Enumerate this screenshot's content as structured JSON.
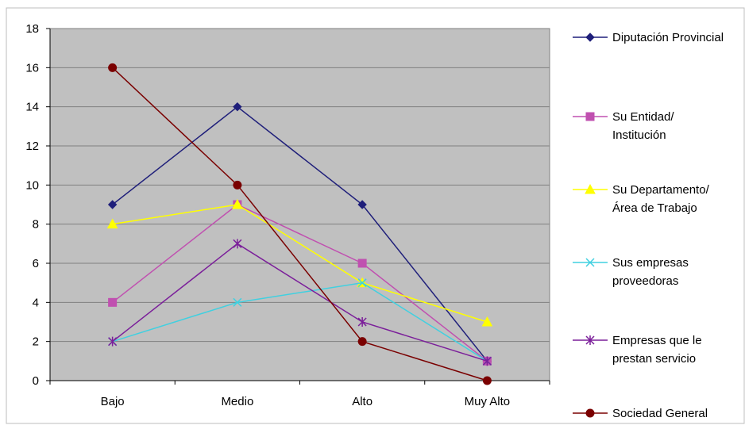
{
  "chart_data": {
    "type": "line",
    "categories": [
      "Bajo",
      "Medio",
      "Alto",
      "Muy Alto"
    ],
    "ylim": [
      0,
      18
    ],
    "yticks": [
      0,
      2,
      4,
      6,
      8,
      10,
      12,
      14,
      16,
      18
    ],
    "grid": true,
    "legend_position": "right",
    "plot_background": "#c0c0c0",
    "series": [
      {
        "name": "Diputación Provincial",
        "legend_lines": [
          "Diputación Provincial"
        ],
        "values": [
          9,
          14,
          9,
          1
        ],
        "color": "#1f1f7a",
        "marker": "diamond"
      },
      {
        "name": "Su Entidad/ Institución",
        "legend_lines": [
          "Su Entidad/",
          "Institución"
        ],
        "values": [
          4,
          9,
          6,
          1
        ],
        "color": "#c050b0",
        "marker": "square"
      },
      {
        "name": "Su Departamento/ Área de Trabajo",
        "legend_lines": [
          "Su Departamento/",
          "Área de Trabajo"
        ],
        "values": [
          8,
          9,
          5,
          3
        ],
        "color": "#ffff00",
        "marker": "triangle"
      },
      {
        "name": "Sus empresas proveedoras",
        "legend_lines": [
          "Sus empresas",
          "proveedoras"
        ],
        "values": [
          2,
          4,
          5,
          1
        ],
        "color": "#40d0e0",
        "marker": "x"
      },
      {
        "name": "Empresas que le prestan servicio",
        "legend_lines": [
          "Empresas que le",
          "prestan servicio"
        ],
        "values": [
          2,
          7,
          3,
          1
        ],
        "color": "#7b1f9a",
        "marker": "star"
      },
      {
        "name": "Sociedad General",
        "legend_lines": [
          "Sociedad General"
        ],
        "values": [
          16,
          10,
          2,
          0
        ],
        "color": "#7a0000",
        "marker": "circle"
      }
    ]
  }
}
